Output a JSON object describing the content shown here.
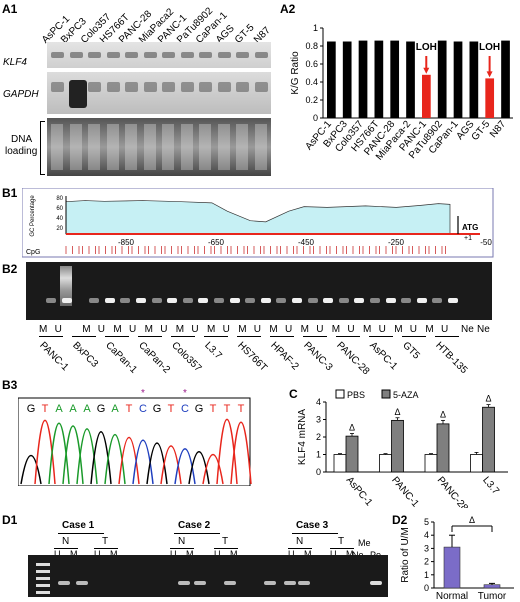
{
  "panels": {
    "a1": "A1",
    "a2": "A2",
    "b1": "B1",
    "b2": "B2",
    "b3": "B3",
    "c": "C",
    "d1": "D1",
    "d2": "D2"
  },
  "a1": {
    "cell_lines": [
      "AsPC-1",
      "BxPC3",
      "Colo357",
      "HS766T",
      "PANC-28",
      "MiaPaca2",
      "PANC-1",
      "PaTu8902",
      "CaPan-1",
      "AGS",
      "GT-5",
      "N87"
    ],
    "row_labels": [
      "KLF4",
      "GAPDH"
    ],
    "dna_label_1": "DNA",
    "dna_label_2": "loading"
  },
  "chart_data": [
    {
      "type": "bar",
      "panel": "A2",
      "categories": [
        "AsPC-1",
        "BxPC3",
        "Colo357",
        "HS766T",
        "PANC-28",
        "MiaPaca-2",
        "PANC-1",
        "PaTu8902",
        "CaPan-1",
        "AGS",
        "GT-5",
        "N87"
      ],
      "values": [
        0.85,
        0.85,
        0.86,
        0.86,
        0.86,
        0.85,
        0.48,
        0.86,
        0.85,
        0.85,
        0.44,
        0.86
      ],
      "colors": [
        "#000000",
        "#000000",
        "#000000",
        "#000000",
        "#000000",
        "#000000",
        "#e8261c",
        "#000000",
        "#000000",
        "#000000",
        "#e8261c",
        "#000000"
      ],
      "ylabel": "K/G Ratio",
      "ylim": [
        0,
        1
      ],
      "yticks": [
        "0",
        "0.2",
        "0.4",
        "0.6",
        "0.8",
        "1"
      ],
      "annotations": [
        "LOH",
        "LOH"
      ]
    },
    {
      "type": "bar",
      "panel": "C",
      "categories": [
        "AsPC-1",
        "PANC-1",
        "PANC-28",
        "L3.7"
      ],
      "series": [
        {
          "name": "PBS",
          "values": [
            1.0,
            1.0,
            1.0,
            1.0
          ],
          "errors": [
            0.05,
            0.05,
            0.05,
            0.12
          ]
        },
        {
          "name": "5-AZA",
          "values": [
            2.05,
            2.95,
            2.75,
            3.7
          ],
          "errors": [
            0.15,
            0.15,
            0.2,
            0.15
          ]
        }
      ],
      "ylabel": "KLF4 mRNA",
      "ylim": [
        0,
        4
      ],
      "yticks": [
        "0",
        "1",
        "2",
        "3",
        "4"
      ],
      "marker": "Δ"
    },
    {
      "type": "bar",
      "panel": "D2",
      "categories": [
        "Normal",
        "Tumor"
      ],
      "values": [
        3.1,
        0.25
      ],
      "errors": [
        0.9,
        0.1
      ],
      "ylabel": "Ratio of U/M",
      "ylim": [
        0,
        5
      ],
      "yticks": [
        "0",
        "1",
        "2",
        "3",
        "4",
        "5"
      ],
      "marker": "Δ"
    }
  ],
  "b1": {
    "ylabel": "GC Percentage",
    "yticks": [
      "80",
      "60",
      "40",
      "20"
    ],
    "xticks": [
      "-850",
      "-650",
      "-450",
      "-250",
      "-50"
    ],
    "cpg_label": "CpG",
    "atg_label": "ATG",
    "plus1": "+1"
  },
  "b2": {
    "mu_labels": [
      "M",
      "U",
      "M",
      "U",
      "M",
      "U",
      "M",
      "U",
      "M",
      "U",
      "M",
      "U",
      "M",
      "U",
      "M",
      "U",
      "M",
      "U",
      "M",
      "U",
      "M",
      "U",
      "M",
      "U",
      "M",
      "U"
    ],
    "ne_labels": [
      "Ne",
      "Ne"
    ],
    "cell_lines": [
      "PANC-1",
      "BxPC3",
      "CaPan-1",
      "CaPan-2",
      "Colo357",
      "L3.7",
      "HS766T",
      "HPAF-2",
      "PANC-3",
      "PANC-28",
      "AsPC-1",
      "GT5",
      "HTB-135"
    ]
  },
  "b3": {
    "seq": [
      "G",
      "T",
      "A",
      "A",
      "A",
      "G",
      "A",
      "T",
      "C",
      "G",
      "T",
      "C",
      "G",
      "T",
      "T",
      "T"
    ],
    "star": "*"
  },
  "d1": {
    "cases": [
      "Case 1",
      "Case 2",
      "Case 3"
    ],
    "nt": [
      "N",
      "T",
      "N",
      "T",
      "N",
      "T"
    ],
    "um": [
      "U",
      "M",
      "U",
      "M",
      "U",
      "M",
      "U",
      "M",
      "U",
      "M",
      "U",
      "M"
    ],
    "me": "Me",
    "ne": "Ne",
    "po": "Po"
  }
}
